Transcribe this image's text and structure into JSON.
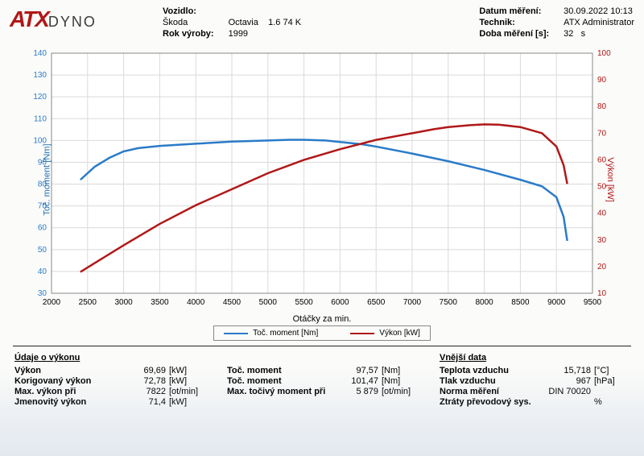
{
  "header": {
    "logo": {
      "a": "ATX",
      "dyno": "DYNO"
    },
    "left": {
      "vozidlo_label": "Vozidlo:",
      "make": "Škoda",
      "model": "Octavia",
      "variant": "1.6 74 K",
      "rok_label": "Rok výroby:",
      "rok": "1999"
    },
    "right": {
      "datum_label": "Datum měření:",
      "datum": "30.09.2022 10:13",
      "technik_label": "Technik:",
      "technik": "ATX Administrator",
      "doba_label": "Doba měření [s]:",
      "doba": "32",
      "doba_unit": "s"
    }
  },
  "chart": {
    "type": "line",
    "x": {
      "label": "Otáčky za min.",
      "min": 2000,
      "max": 9500,
      "step": 500
    },
    "y_left": {
      "label": "Toč. moment [Nm]",
      "min": 30,
      "max": 140,
      "step": 10,
      "color": "#2a7bc8"
    },
    "y_right": {
      "label": "Výkon [kW]",
      "min": 10,
      "max": 100,
      "step": 10,
      "color": "#b01818"
    },
    "grid_color": "#dadada",
    "border_color": "#888",
    "background": "#ffffff",
    "line_width": 2.5,
    "series": {
      "torque": {
        "legend": "Toč. moment [Nm]",
        "axis": "left",
        "color": "#2a7bc8",
        "points": [
          [
            2400,
            82
          ],
          [
            2600,
            88
          ],
          [
            2800,
            92
          ],
          [
            3000,
            95
          ],
          [
            3200,
            96.5
          ],
          [
            3500,
            97.5
          ],
          [
            4000,
            98.5
          ],
          [
            4500,
            99.5
          ],
          [
            5000,
            100
          ],
          [
            5300,
            100.3
          ],
          [
            5500,
            100.3
          ],
          [
            5800,
            100
          ],
          [
            6000,
            99.3
          ],
          [
            6300,
            98.3
          ],
          [
            6500,
            97.2
          ],
          [
            7000,
            94
          ],
          [
            7500,
            90.5
          ],
          [
            8000,
            86.5
          ],
          [
            8500,
            82
          ],
          [
            8800,
            79
          ],
          [
            9000,
            74
          ],
          [
            9100,
            65
          ],
          [
            9150,
            54
          ]
        ]
      },
      "power": {
        "legend": "Výkon [kW]",
        "axis": "right",
        "color": "#b01818",
        "points": [
          [
            2400,
            18
          ],
          [
            2700,
            23
          ],
          [
            3000,
            28
          ],
          [
            3500,
            36
          ],
          [
            4000,
            43
          ],
          [
            4500,
            49
          ],
          [
            5000,
            55
          ],
          [
            5500,
            60
          ],
          [
            6000,
            64
          ],
          [
            6500,
            67.5
          ],
          [
            7000,
            70
          ],
          [
            7300,
            71.5
          ],
          [
            7500,
            72.3
          ],
          [
            7800,
            73
          ],
          [
            8000,
            73.3
          ],
          [
            8200,
            73.2
          ],
          [
            8500,
            72.3
          ],
          [
            8800,
            70
          ],
          [
            9000,
            65
          ],
          [
            9100,
            58
          ],
          [
            9150,
            51
          ]
        ]
      }
    }
  },
  "bottom": {
    "col1": {
      "title": "Údaje o výkonu",
      "rows": [
        {
          "label": "Výkon",
          "value": "69,69",
          "unit": "[kW]"
        },
        {
          "label": "Korigovaný výkon",
          "value": "72,78",
          "unit": "[kW]"
        },
        {
          "label": "Max. výkon při",
          "value": "7822",
          "unit": "[ot/min]"
        },
        {
          "label": "Jmenovitý výkon",
          "value": "71,4",
          "unit": "[kW]"
        }
      ]
    },
    "col2": {
      "rows": [
        {
          "label": "Toč. moment",
          "value": "97,57",
          "unit": "[Nm]"
        },
        {
          "label": "Toč. moment",
          "value": "101,47",
          "unit": "[Nm]"
        },
        {
          "label": "Max. točivý moment při",
          "value": "5 879",
          "unit": "[ot/min]"
        }
      ]
    },
    "col3": {
      "title": "Vnější data",
      "rows": [
        {
          "label": "Teplota vzduchu",
          "value": "15,718",
          "unit": "[°C]"
        },
        {
          "label": "Tlak vzduchu",
          "value": "967",
          "unit": "[hPa]"
        },
        {
          "label": "Norma měření",
          "value": "DIN 70020",
          "unit": ""
        },
        {
          "label": "Ztráty převodový sys.",
          "value": "",
          "unit": "%"
        }
      ]
    }
  }
}
